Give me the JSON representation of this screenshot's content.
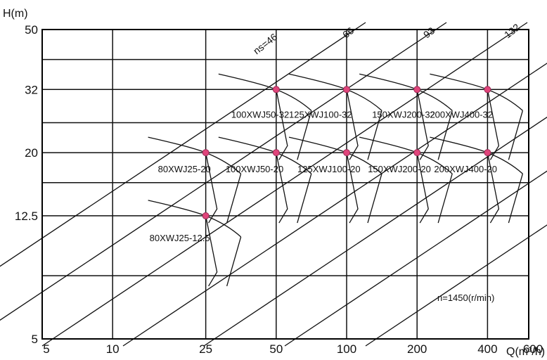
{
  "chart_data": {
    "type": "scatter",
    "title": "",
    "xlabel": "Q(m³/h)",
    "ylabel": "H(m)",
    "x_ticks": [
      "5",
      "10",
      "25",
      "50",
      "100",
      "200",
      "400",
      "600"
    ],
    "y_ticks": [
      "5",
      "12.5",
      "20",
      "32",
      "50"
    ],
    "xlim": [
      5,
      600
    ],
    "ylim": [
      5,
      50
    ],
    "x_scale": "log",
    "y_scale": "log",
    "grid": true,
    "note": "n=1450(r/min)",
    "specific_speed_lines": [
      {
        "label": "ns=46",
        "value": 46
      },
      {
        "label": "66",
        "value": 66
      },
      {
        "label": "93",
        "value": 93
      },
      {
        "label": "132",
        "value": 132
      }
    ],
    "points": [
      {
        "model": "80XWJ25-12.5",
        "q": 25,
        "h": 12.5
      },
      {
        "model": "80XWJ25-20",
        "q": 25,
        "h": 20
      },
      {
        "model": "100XWJ50-20",
        "q": 50,
        "h": 20
      },
      {
        "model": "125XWJ100-20",
        "q": 100,
        "h": 20
      },
      {
        "model": "150XWJ200-20",
        "q": 200,
        "h": 20
      },
      {
        "model": "200XWJ400-20",
        "q": 400,
        "h": 20
      },
      {
        "model": "100XWJ50-32",
        "q": 50,
        "h": 32
      },
      {
        "model": "125XWJ100-32",
        "q": 100,
        "h": 32
      },
      {
        "model": "150XWJ200-32",
        "q": 200,
        "h": 32
      },
      {
        "model": "200XWJ400-32",
        "q": 400,
        "h": 32
      }
    ],
    "colors": {
      "point": "#e0457b",
      "line": "#111111"
    }
  }
}
